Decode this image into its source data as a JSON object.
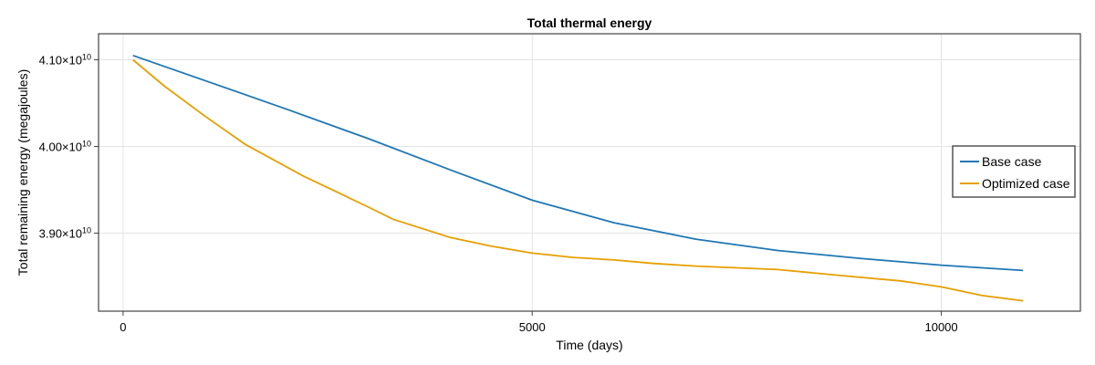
{
  "chart_data": {
    "type": "line",
    "title": "Total thermal energy",
    "xlabel": "Time (days)",
    "ylabel": "Total remaining energy (megajoules)",
    "xlim": [
      -300,
      11700
    ],
    "ylim": [
      38100000000,
      41300000000
    ],
    "x_ticks": [
      {
        "value": 0,
        "label": "0"
      },
      {
        "value": 5000,
        "label": "5000"
      },
      {
        "value": 10000,
        "label": "10000"
      }
    ],
    "y_ticks": [
      {
        "value": 39000000000,
        "mantissa": "3.90×10",
        "exp": "10"
      },
      {
        "value": 40000000000,
        "mantissa": "4.00×10",
        "exp": "10"
      },
      {
        "value": 41000000000,
        "mantissa": "4.10×10",
        "exp": "10"
      }
    ],
    "grid": true,
    "legend_position": "right",
    "series": [
      {
        "name": "Base case",
        "color": "#1f77b4",
        "x": [
          120,
          1000,
          2000,
          3000,
          4000,
          5000,
          6000,
          7000,
          8000,
          9000,
          10000,
          11000
        ],
        "y": [
          41050000000,
          40760000000,
          40430000000,
          40090000000,
          39730000000,
          39380000000,
          39120000000,
          38930000000,
          38800000000,
          38710000000,
          38630000000,
          38570000000
        ]
      },
      {
        "name": "Optimized case",
        "color": "#e69f00",
        "x": [
          120,
          500,
          1000,
          1500,
          2200,
          3000,
          3300,
          4000,
          4500,
          5000,
          5500,
          6000,
          6500,
          7000,
          8000,
          8900,
          9500,
          10000,
          10500,
          11000
        ],
        "y": [
          41000000000,
          40700000000,
          40350000000,
          40020000000,
          39660000000,
          39300000000,
          39160000000,
          38950000000,
          38850000000,
          38770000000,
          38720000000,
          38690000000,
          38650000000,
          38620000000,
          38580000000,
          38500000000,
          38450000000,
          38380000000,
          38280000000,
          38220000000
        ]
      }
    ]
  }
}
